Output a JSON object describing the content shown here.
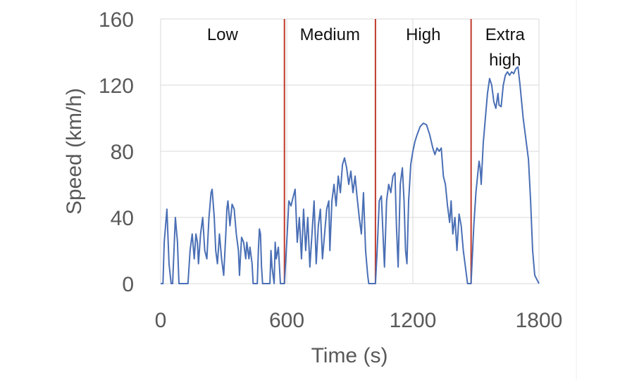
{
  "chart_data": {
    "type": "line",
    "x_label": "Time (s)",
    "y_label": "Speed (km/h)",
    "xlim": [
      0,
      1800
    ],
    "ylim": [
      0,
      160
    ],
    "xticks": [
      0,
      600,
      1200,
      1800
    ],
    "yticks": [
      0,
      40,
      80,
      120,
      160
    ],
    "grid": true,
    "phase_color": "#c0392b",
    "phase_boundaries": [
      589,
      1022,
      1477
    ],
    "phases": [
      "Low",
      "Medium",
      "High",
      "Extra high"
    ],
    "series": [
      {
        "name": "Speed",
        "color": "#4a6fb5",
        "x": [
          0,
          11,
          17,
          30,
          40,
          50,
          57,
          70,
          80,
          87,
          130,
          140,
          150,
          160,
          168,
          175,
          180,
          190,
          200,
          210,
          220,
          230,
          240,
          245,
          255,
          262,
          270,
          280,
          290,
          300,
          310,
          315,
          320,
          330,
          340,
          350,
          360,
          370,
          375,
          385,
          395,
          405,
          410,
          420,
          425,
          435,
          440,
          460,
          465,
          470,
          475,
          480,
          485,
          520,
          525,
          530,
          540,
          545,
          550,
          560,
          570,
          589,
          600,
          610,
          620,
          630,
          640,
          650,
          660,
          670,
          680,
          690,
          700,
          710,
          720,
          730,
          740,
          750,
          760,
          770,
          780,
          790,
          800,
          805,
          815,
          825,
          835,
          845,
          855,
          865,
          875,
          885,
          895,
          905,
          915,
          925,
          935,
          945,
          955,
          965,
          975,
          985,
          990,
          1022,
          1030,
          1040,
          1050,
          1058,
          1065,
          1075,
          1085,
          1095,
          1105,
          1115,
          1122,
          1130,
          1140,
          1150,
          1158,
          1165,
          1172,
          1180,
          1190,
          1200,
          1210,
          1220,
          1235,
          1250,
          1265,
          1280,
          1295,
          1305,
          1315,
          1325,
          1335,
          1345,
          1355,
          1365,
          1375,
          1382,
          1390,
          1400,
          1410,
          1420,
          1430,
          1440,
          1450,
          1460,
          1477,
          1490,
          1500,
          1510,
          1515,
          1520,
          1525,
          1535,
          1545,
          1555,
          1565,
          1575,
          1585,
          1595,
          1605,
          1610,
          1620,
          1630,
          1640,
          1650,
          1660,
          1670,
          1680,
          1690,
          1700,
          1710,
          1725,
          1740,
          1750,
          1760,
          1770,
          1780,
          1800
        ],
        "values": [
          0,
          0,
          25,
          45,
          12,
          0,
          0,
          40,
          25,
          0,
          0,
          20,
          30,
          15,
          30,
          25,
          12,
          30,
          40,
          20,
          15,
          40,
          55,
          57,
          40,
          20,
          12,
          30,
          15,
          5,
          30,
          45,
          50,
          35,
          48,
          45,
          30,
          20,
          5,
          28,
          25,
          15,
          25,
          15,
          22,
          12,
          0,
          0,
          20,
          33,
          30,
          10,
          0,
          0,
          20,
          10,
          0,
          25,
          15,
          22,
          0,
          0,
          25,
          50,
          47,
          52,
          57,
          25,
          40,
          15,
          45,
          20,
          40,
          10,
          30,
          50,
          12,
          35,
          45,
          15,
          30,
          45,
          50,
          20,
          50,
          60,
          47,
          65,
          55,
          72,
          76,
          70,
          60,
          68,
          55,
          65,
          52,
          40,
          30,
          55,
          20,
          5,
          0,
          0,
          20,
          50,
          53,
          30,
          10,
          50,
          60,
          55,
          65,
          67,
          35,
          10,
          60,
          70,
          50,
          20,
          12,
          50,
          72,
          80,
          86,
          90,
          95,
          97,
          96,
          90,
          82,
          78,
          82,
          80,
          82,
          65,
          60,
          47,
          37,
          50,
          30,
          40,
          20,
          42,
          35,
          20,
          10,
          0,
          0,
          35,
          55,
          68,
          74,
          70,
          60,
          85,
          100,
          115,
          124,
          120,
          110,
          106,
          115,
          108,
          107,
          120,
          126,
          128,
          126,
          128,
          127,
          130,
          131,
          120,
          100,
          85,
          75,
          50,
          20,
          5,
          0
        ]
      }
    ]
  }
}
